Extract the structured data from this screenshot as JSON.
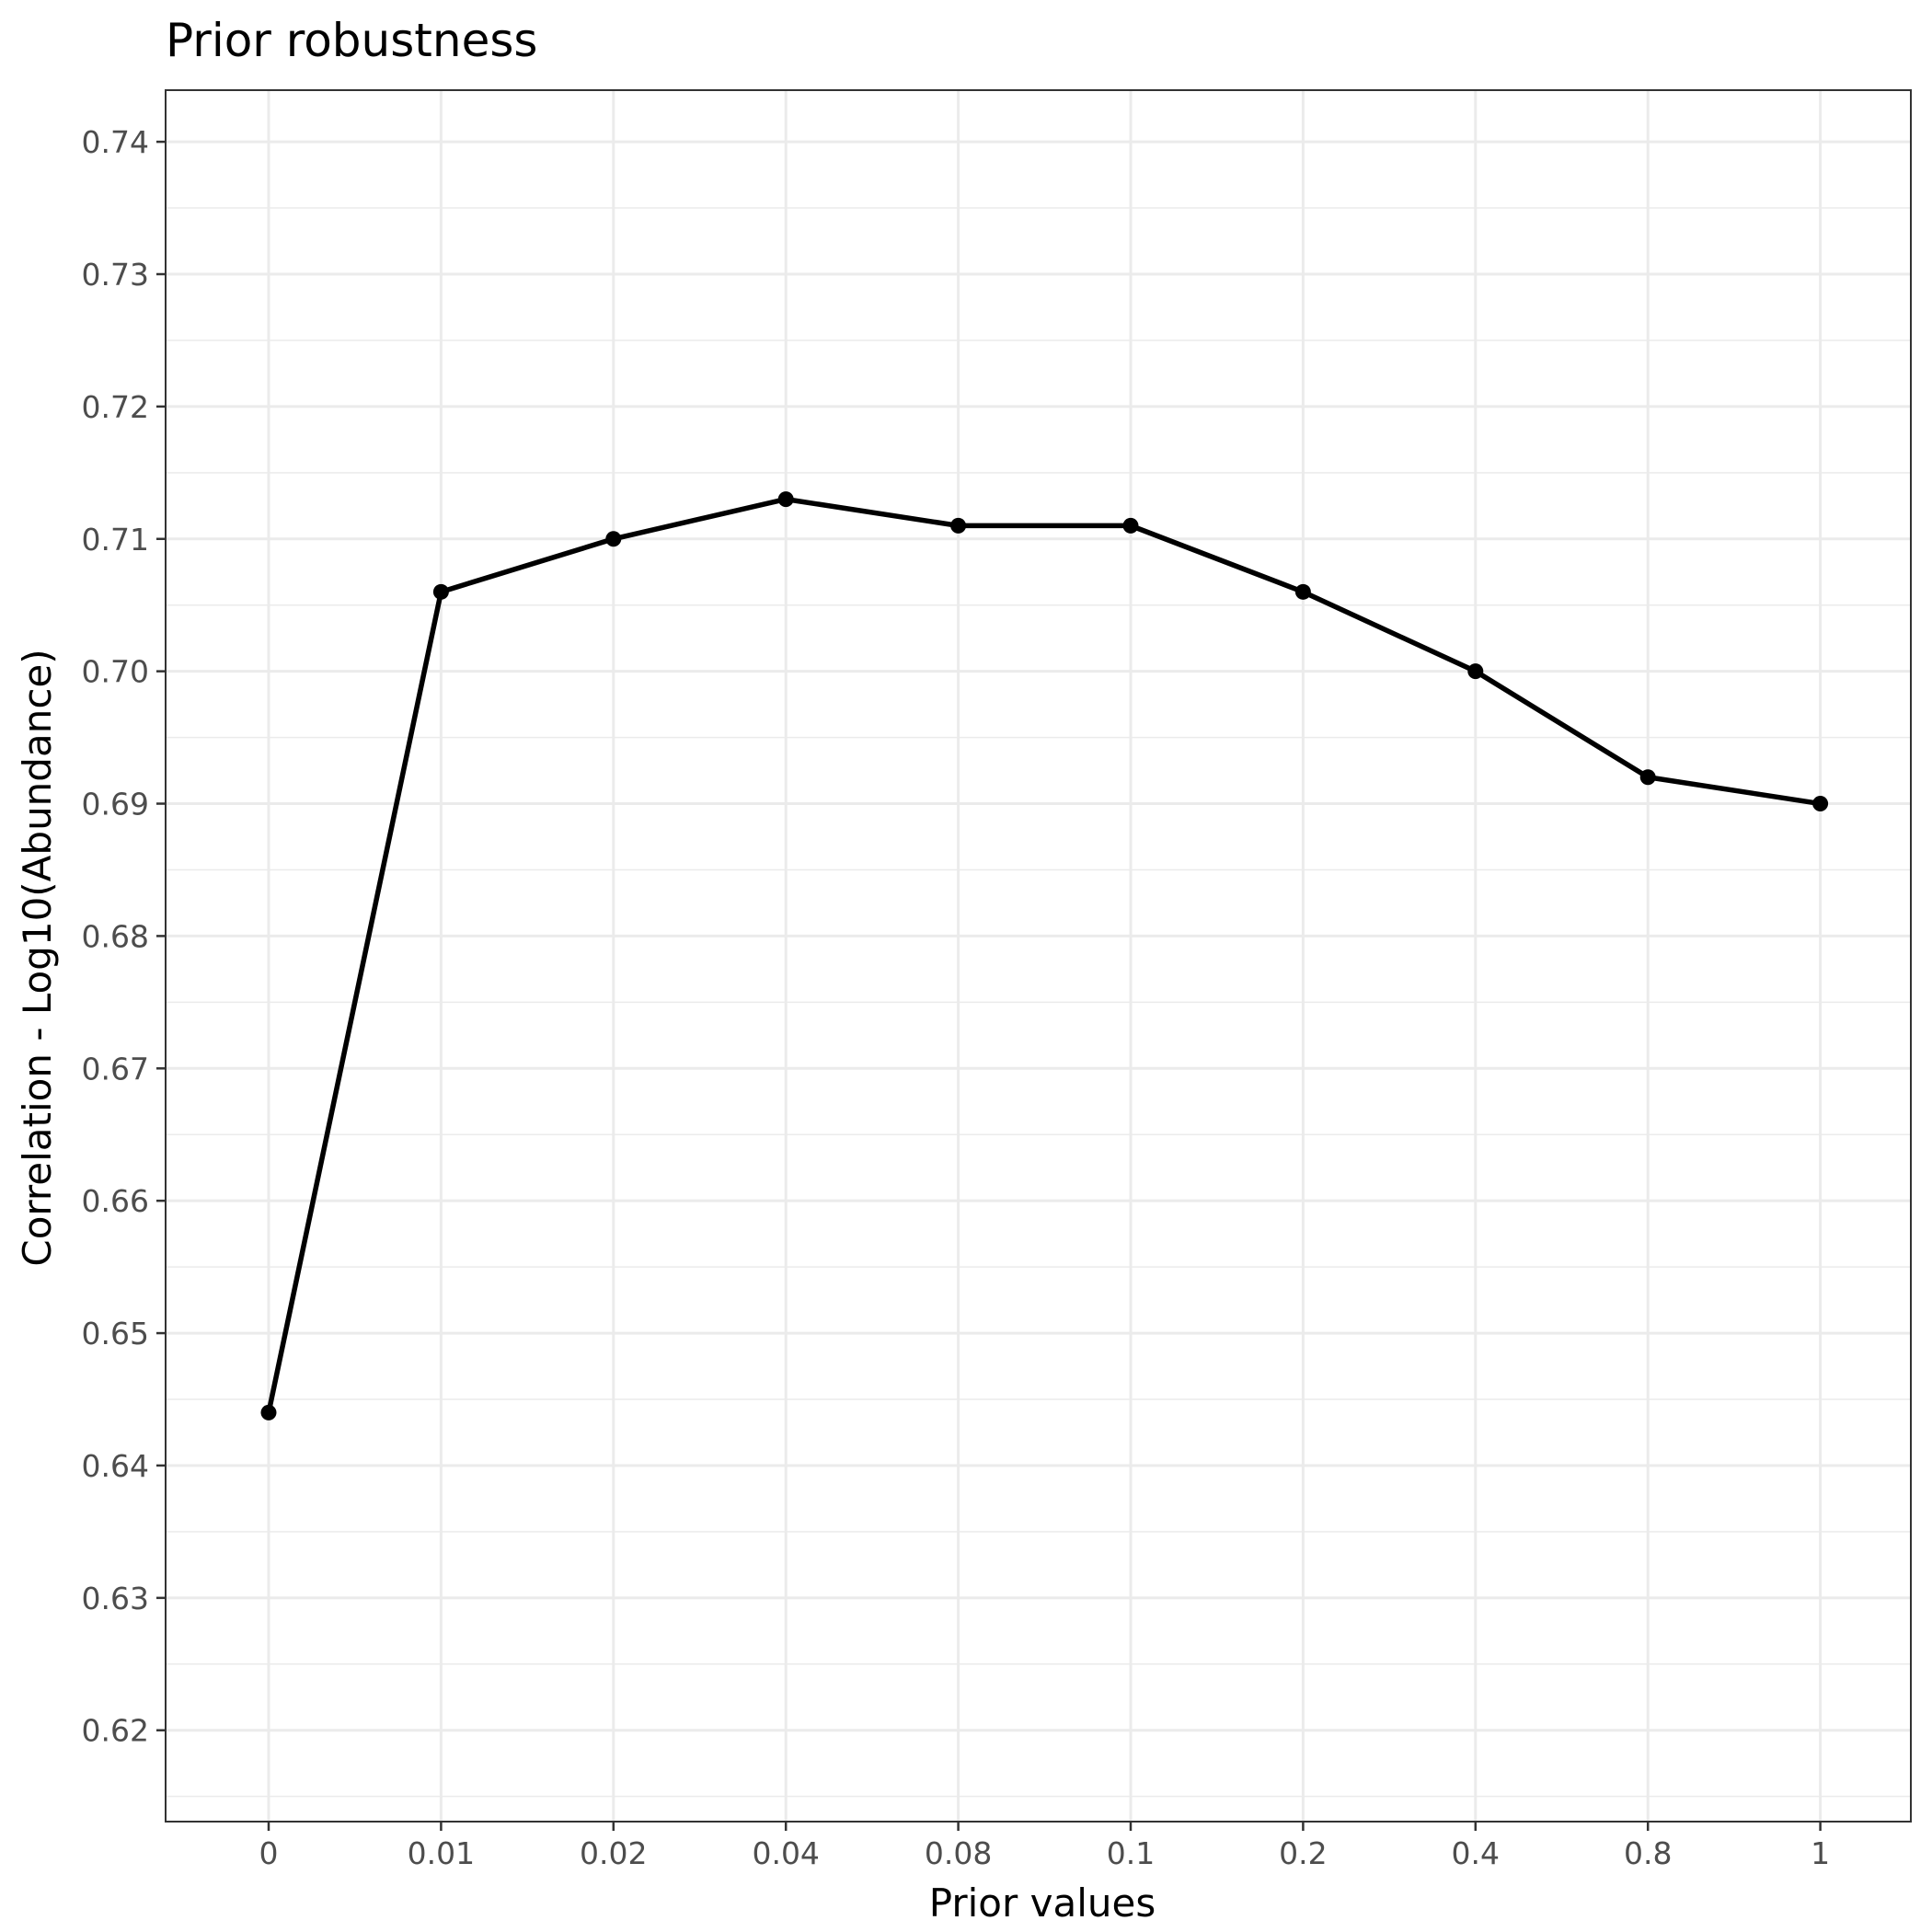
{
  "chart_data": {
    "type": "line",
    "title": "Prior robustness",
    "xlabel": "Prior values",
    "ylabel": "Correlation - Log10(Abundance)",
    "categories": [
      "0",
      "0.01",
      "0.02",
      "0.04",
      "0.08",
      "0.1",
      "0.2",
      "0.4",
      "0.8",
      "1"
    ],
    "series": [
      {
        "values": [
          0.644,
          0.706,
          0.71,
          0.713,
          0.711,
          0.711,
          0.706,
          0.7,
          0.692,
          0.69
        ]
      }
    ],
    "yticks": [
      0.62,
      0.63,
      0.64,
      0.65,
      0.66,
      0.67,
      0.68,
      0.69,
      0.7,
      0.71,
      0.72,
      0.73,
      0.74
    ],
    "ytick_labels": [
      "0.62",
      "0.63",
      "0.64",
      "0.65",
      "0.66",
      "0.67",
      "0.68",
      "0.69",
      "0.70",
      "0.71",
      "0.72",
      "0.73",
      "0.74"
    ],
    "ylim": [
      0.6131,
      0.7439
    ],
    "grid": true,
    "legend": "none",
    "colors": {
      "line": "#000000",
      "grid": "#ebebeb",
      "panel_border": "#333333",
      "tick_text": "#4d4d4d",
      "background": "#ffffff"
    }
  }
}
